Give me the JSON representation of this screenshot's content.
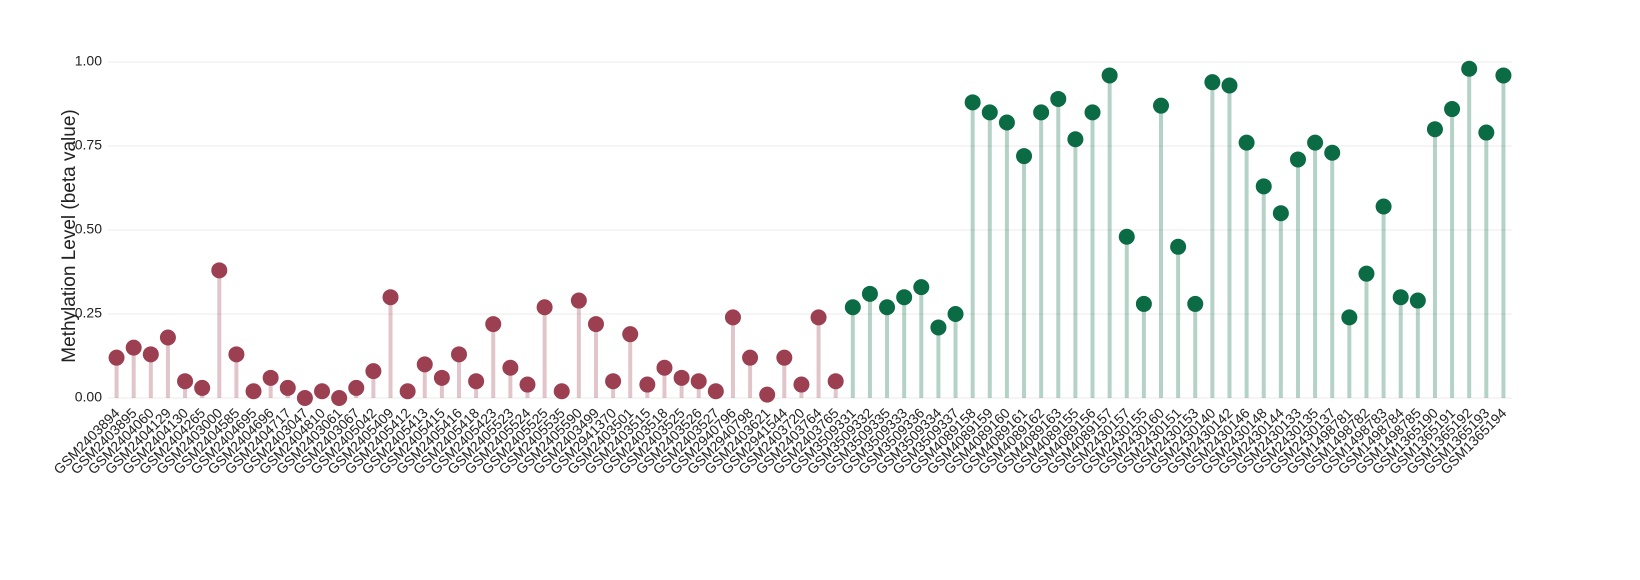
{
  "chart_data": {
    "type": "lollipop",
    "y_label": "Methylation Level (beta value)",
    "categories": [
      "GSM2403894",
      "GSM2403895",
      "GSM2404060",
      "GSM2404129",
      "GSM2404130",
      "GSM2404265",
      "GSM2403000",
      "GSM2404585",
      "GSM2404695",
      "GSM2404696",
      "GSM2404717",
      "GSM2403047",
      "GSM2404810",
      "GSM2403061",
      "GSM2403067",
      "GSM2405042",
      "GSM2405409",
      "GSM2405412",
      "GSM2405413",
      "GSM2405415",
      "GSM2405416",
      "GSM2405418",
      "GSM2405423",
      "GSM2405523",
      "GSM2405524",
      "GSM2405525",
      "GSM2405535",
      "GSM2405590",
      "GSM2403499",
      "GSM2941370",
      "GSM2403501",
      "GSM2403515",
      "GSM2403518",
      "GSM2403525",
      "GSM2403526",
      "GSM2403527",
      "GSM2940796",
      "GSM2940798",
      "GSM2403621",
      "GSM2941544",
      "GSM2403720",
      "GSM2403764",
      "GSM2403765",
      "GSM3509331",
      "GSM3509332",
      "GSM3509335",
      "GSM3509333",
      "GSM3509336",
      "GSM3509334",
      "GSM3509337",
      "GSM4089158",
      "GSM4089159",
      "GSM4089160",
      "GSM4089161",
      "GSM4089162",
      "GSM4089163",
      "GSM4089155",
      "GSM4089156",
      "GSM4089157",
      "GSM2430157",
      "GSM2430155",
      "GSM2430160",
      "GSM2430151",
      "GSM2430153",
      "GSM2430140",
      "GSM2430142",
      "GSM2430146",
      "GSM2430148",
      "GSM2430144",
      "GSM2430133",
      "GSM2430135",
      "GSM2430137",
      "GSM1498781",
      "GSM1498782",
      "GSM1498783",
      "GSM1498784",
      "GSM1498785",
      "GSM1365190",
      "GSM1365191",
      "GSM1365192",
      "GSM1365193",
      "GSM1365194"
    ],
    "values": [
      0.12,
      0.15,
      0.13,
      0.18,
      0.05,
      0.03,
      0.38,
      0.13,
      0.02,
      0.06,
      0.03,
      0.0,
      0.02,
      0.0,
      0.03,
      0.08,
      0.3,
      0.02,
      0.1,
      0.06,
      0.13,
      0.05,
      0.22,
      0.09,
      0.04,
      0.27,
      0.02,
      0.29,
      0.22,
      0.05,
      0.19,
      0.04,
      0.09,
      0.06,
      0.05,
      0.02,
      0.24,
      0.12,
      0.01,
      0.12,
      0.04,
      0.24,
      0.05,
      0.27,
      0.31,
      0.27,
      0.3,
      0.33,
      0.21,
      0.25,
      0.88,
      0.85,
      0.82,
      0.72,
      0.85,
      0.89,
      0.77,
      0.85,
      0.96,
      0.48,
      0.28,
      0.87,
      0.45,
      0.28,
      0.94,
      0.93,
      0.76,
      0.63,
      0.55,
      0.71,
      0.76,
      0.73,
      0.24,
      0.37,
      0.57,
      0.3,
      0.29,
      0.8,
      0.86,
      0.98,
      0.79,
      0.96
    ],
    "colors": [
      "#9b3f51",
      "#9b3f51",
      "#9b3f51",
      "#9b3f51",
      "#9b3f51",
      "#9b3f51",
      "#9b3f51",
      "#9b3f51",
      "#9b3f51",
      "#9b3f51",
      "#9b3f51",
      "#9b3f51",
      "#9b3f51",
      "#9b3f51",
      "#9b3f51",
      "#9b3f51",
      "#9b3f51",
      "#9b3f51",
      "#9b3f51",
      "#9b3f51",
      "#9b3f51",
      "#9b3f51",
      "#9b3f51",
      "#9b3f51",
      "#9b3f51",
      "#9b3f51",
      "#9b3f51",
      "#9b3f51",
      "#9b3f51",
      "#9b3f51",
      "#9b3f51",
      "#9b3f51",
      "#9b3f51",
      "#9b3f51",
      "#9b3f51",
      "#9b3f51",
      "#9b3f51",
      "#9b3f51",
      "#9b3f51",
      "#9b3f51",
      "#9b3f51",
      "#9b3f51",
      "#9b3f51",
      "#0b6b45",
      "#0b6b45",
      "#0b6b45",
      "#0b6b45",
      "#0b6b45",
      "#0b6b45",
      "#0b6b45",
      "#0b6b45",
      "#0b6b45",
      "#0b6b45",
      "#0b6b45",
      "#0b6b45",
      "#0b6b45",
      "#0b6b45",
      "#0b6b45",
      "#0b6b45",
      "#0b6b45",
      "#0b6b45",
      "#0b6b45",
      "#0b6b45",
      "#0b6b45",
      "#0b6b45",
      "#0b6b45",
      "#0b6b45",
      "#0b6b45",
      "#0b6b45",
      "#0b6b45",
      "#0b6b45",
      "#0b6b45",
      "#0b6b45",
      "#0b6b45",
      "#0b6b45",
      "#0b6b45",
      "#0b6b45",
      "#0b6b45",
      "#0b6b45",
      "#0b6b45",
      "#0b6b45",
      "#0b6b45"
    ],
    "ylim": [
      0,
      1
    ],
    "yticks": [
      {
        "value": 0,
        "label": "0.00"
      },
      {
        "value": 0.25,
        "label": "0.25"
      },
      {
        "value": 0.5,
        "label": "0.50"
      },
      {
        "value": 0.75,
        "label": "0.75"
      },
      {
        "value": 1,
        "label": "1.00"
      }
    ],
    "grid": true
  }
}
